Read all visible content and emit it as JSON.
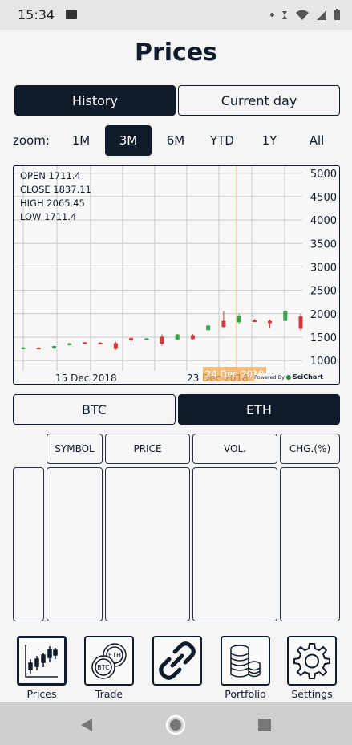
{
  "status": {
    "time": "15:34"
  },
  "page": {
    "title": "Prices"
  },
  "mode_tabs": {
    "history": "History",
    "current_day": "Current day",
    "selected": "History"
  },
  "zoom": {
    "label": "zoom:",
    "options": [
      "1M",
      "3M",
      "6M",
      "YTD",
      "1Y",
      "All"
    ],
    "selected": "3M"
  },
  "chart": {
    "ohlc": {
      "open": "OPEN 1711.4",
      "close": "CLOSE 1837.11",
      "high": "HIGH 2065.45",
      "low": "LOW 1711.4"
    },
    "x_labels": [
      "15 Dec 2018",
      "23 Dec 2018"
    ],
    "cursor_label": "24 Dec 2018",
    "powered_by": "Powered By",
    "brand": "SciChart"
  },
  "chart_data": {
    "type": "candlestick",
    "y_ticks": [
      5000,
      4500,
      4000,
      3500,
      3000,
      2500,
      2000,
      1500,
      1000
    ],
    "ylim": [
      780,
      5150
    ],
    "candles": [
      {
        "o": 1255,
        "h": 1300,
        "l": 1240,
        "c": 1280,
        "color": "up"
      },
      {
        "o": 1275,
        "h": 1285,
        "l": 1245,
        "c": 1255,
        "color": "down"
      },
      {
        "o": 1260,
        "h": 1320,
        "l": 1250,
        "c": 1310,
        "color": "up"
      },
      {
        "o": 1330,
        "h": 1380,
        "l": 1320,
        "c": 1370,
        "color": "up"
      },
      {
        "o": 1390,
        "h": 1400,
        "l": 1365,
        "c": 1370,
        "color": "down"
      },
      {
        "o": 1380,
        "h": 1395,
        "l": 1370,
        "c": 1375,
        "color": "down"
      },
      {
        "o": 1370,
        "h": 1400,
        "l": 1230,
        "c": 1250,
        "color": "down"
      },
      {
        "o": 1480,
        "h": 1500,
        "l": 1410,
        "c": 1430,
        "color": "down"
      },
      {
        "o": 1470,
        "h": 1480,
        "l": 1460,
        "c": 1475,
        "color": "up"
      },
      {
        "o": 1510,
        "h": 1560,
        "l": 1320,
        "c": 1360,
        "color": "down"
      },
      {
        "o": 1450,
        "h": 1570,
        "l": 1440,
        "c": 1560,
        "color": "up"
      },
      {
        "o": 1540,
        "h": 1570,
        "l": 1450,
        "c": 1460,
        "color": "down"
      },
      {
        "o": 1650,
        "h": 1760,
        "l": 1640,
        "c": 1750,
        "color": "up"
      },
      {
        "o": 1850,
        "h": 2060,
        "l": 1700,
        "c": 1720,
        "color": "down"
      },
      {
        "o": 1820,
        "h": 2000,
        "l": 1780,
        "c": 1960,
        "color": "up"
      },
      {
        "o": 1850,
        "h": 1890,
        "l": 1840,
        "c": 1860,
        "color": "down"
      },
      {
        "o": 1800,
        "h": 1880,
        "l": 1700,
        "c": 1850,
        "color": "down"
      },
      {
        "o": 1850,
        "h": 2080,
        "l": 1840,
        "c": 2060,
        "color": "up"
      },
      {
        "o": 1950,
        "h": 2000,
        "l": 1640,
        "c": 1680,
        "color": "down"
      }
    ],
    "up_color": "#37a34a",
    "down_color": "#d23a3a"
  },
  "coin_tabs": {
    "btc": "BTC",
    "eth": "ETH",
    "selected": "ETH"
  },
  "table": {
    "headers": [
      "SYMBOL",
      "PRICE",
      "VOL.",
      "CHG.(%)"
    ]
  },
  "nav": {
    "items": [
      {
        "label": "Prices",
        "icon": "candlestick-icon"
      },
      {
        "label": "Trade",
        "icon": "btc-eth-coins-icon"
      },
      {
        "label": "",
        "icon": "link-icon"
      },
      {
        "label": "Portfolio",
        "icon": "coin-stack-icon"
      },
      {
        "label": "Settings",
        "icon": "gear-icon"
      }
    ]
  }
}
